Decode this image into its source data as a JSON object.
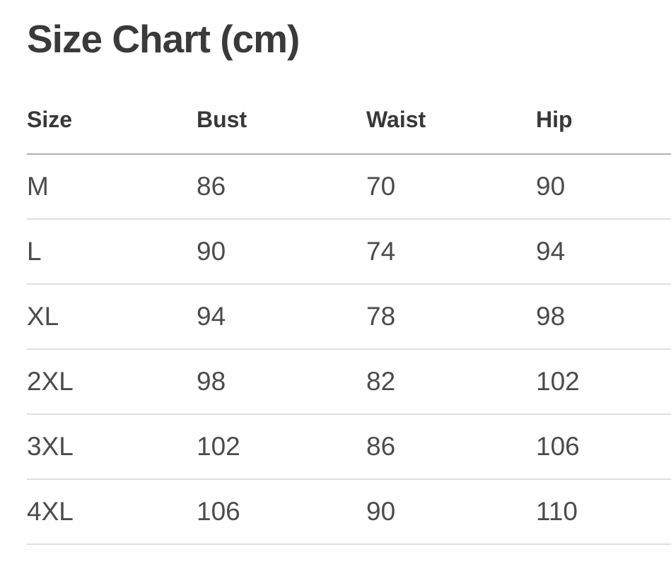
{
  "title": "Size Chart (cm)",
  "table": {
    "columns": [
      "Size",
      "Bust",
      "Waist",
      "Hip"
    ],
    "rows": [
      [
        "M",
        "86",
        "70",
        "90"
      ],
      [
        "L",
        "90",
        "74",
        "94"
      ],
      [
        "XL",
        "94",
        "78",
        "98"
      ],
      [
        "2XL",
        "98",
        "82",
        "102"
      ],
      [
        "3XL",
        "102",
        "86",
        "106"
      ],
      [
        "4XL",
        "106",
        "90",
        "110"
      ]
    ]
  },
  "chart_data": {
    "type": "table",
    "title": "Size Chart (cm)",
    "unit": "cm",
    "columns": [
      "Size",
      "Bust",
      "Waist",
      "Hip"
    ],
    "rows": [
      [
        "M",
        86,
        70,
        90
      ],
      [
        "L",
        90,
        74,
        94
      ],
      [
        "XL",
        94,
        78,
        98
      ],
      [
        "2XL",
        98,
        82,
        102
      ],
      [
        "3XL",
        102,
        86,
        106
      ],
      [
        "4XL",
        106,
        90,
        110
      ]
    ]
  },
  "colors": {
    "background": "#ffffff",
    "title_text": "#3a3a3a",
    "header_text": "#383838",
    "cell_text": "#4b4b4b",
    "header_divider": "#b0b0b0",
    "row_divider": "#dfdfdf"
  }
}
